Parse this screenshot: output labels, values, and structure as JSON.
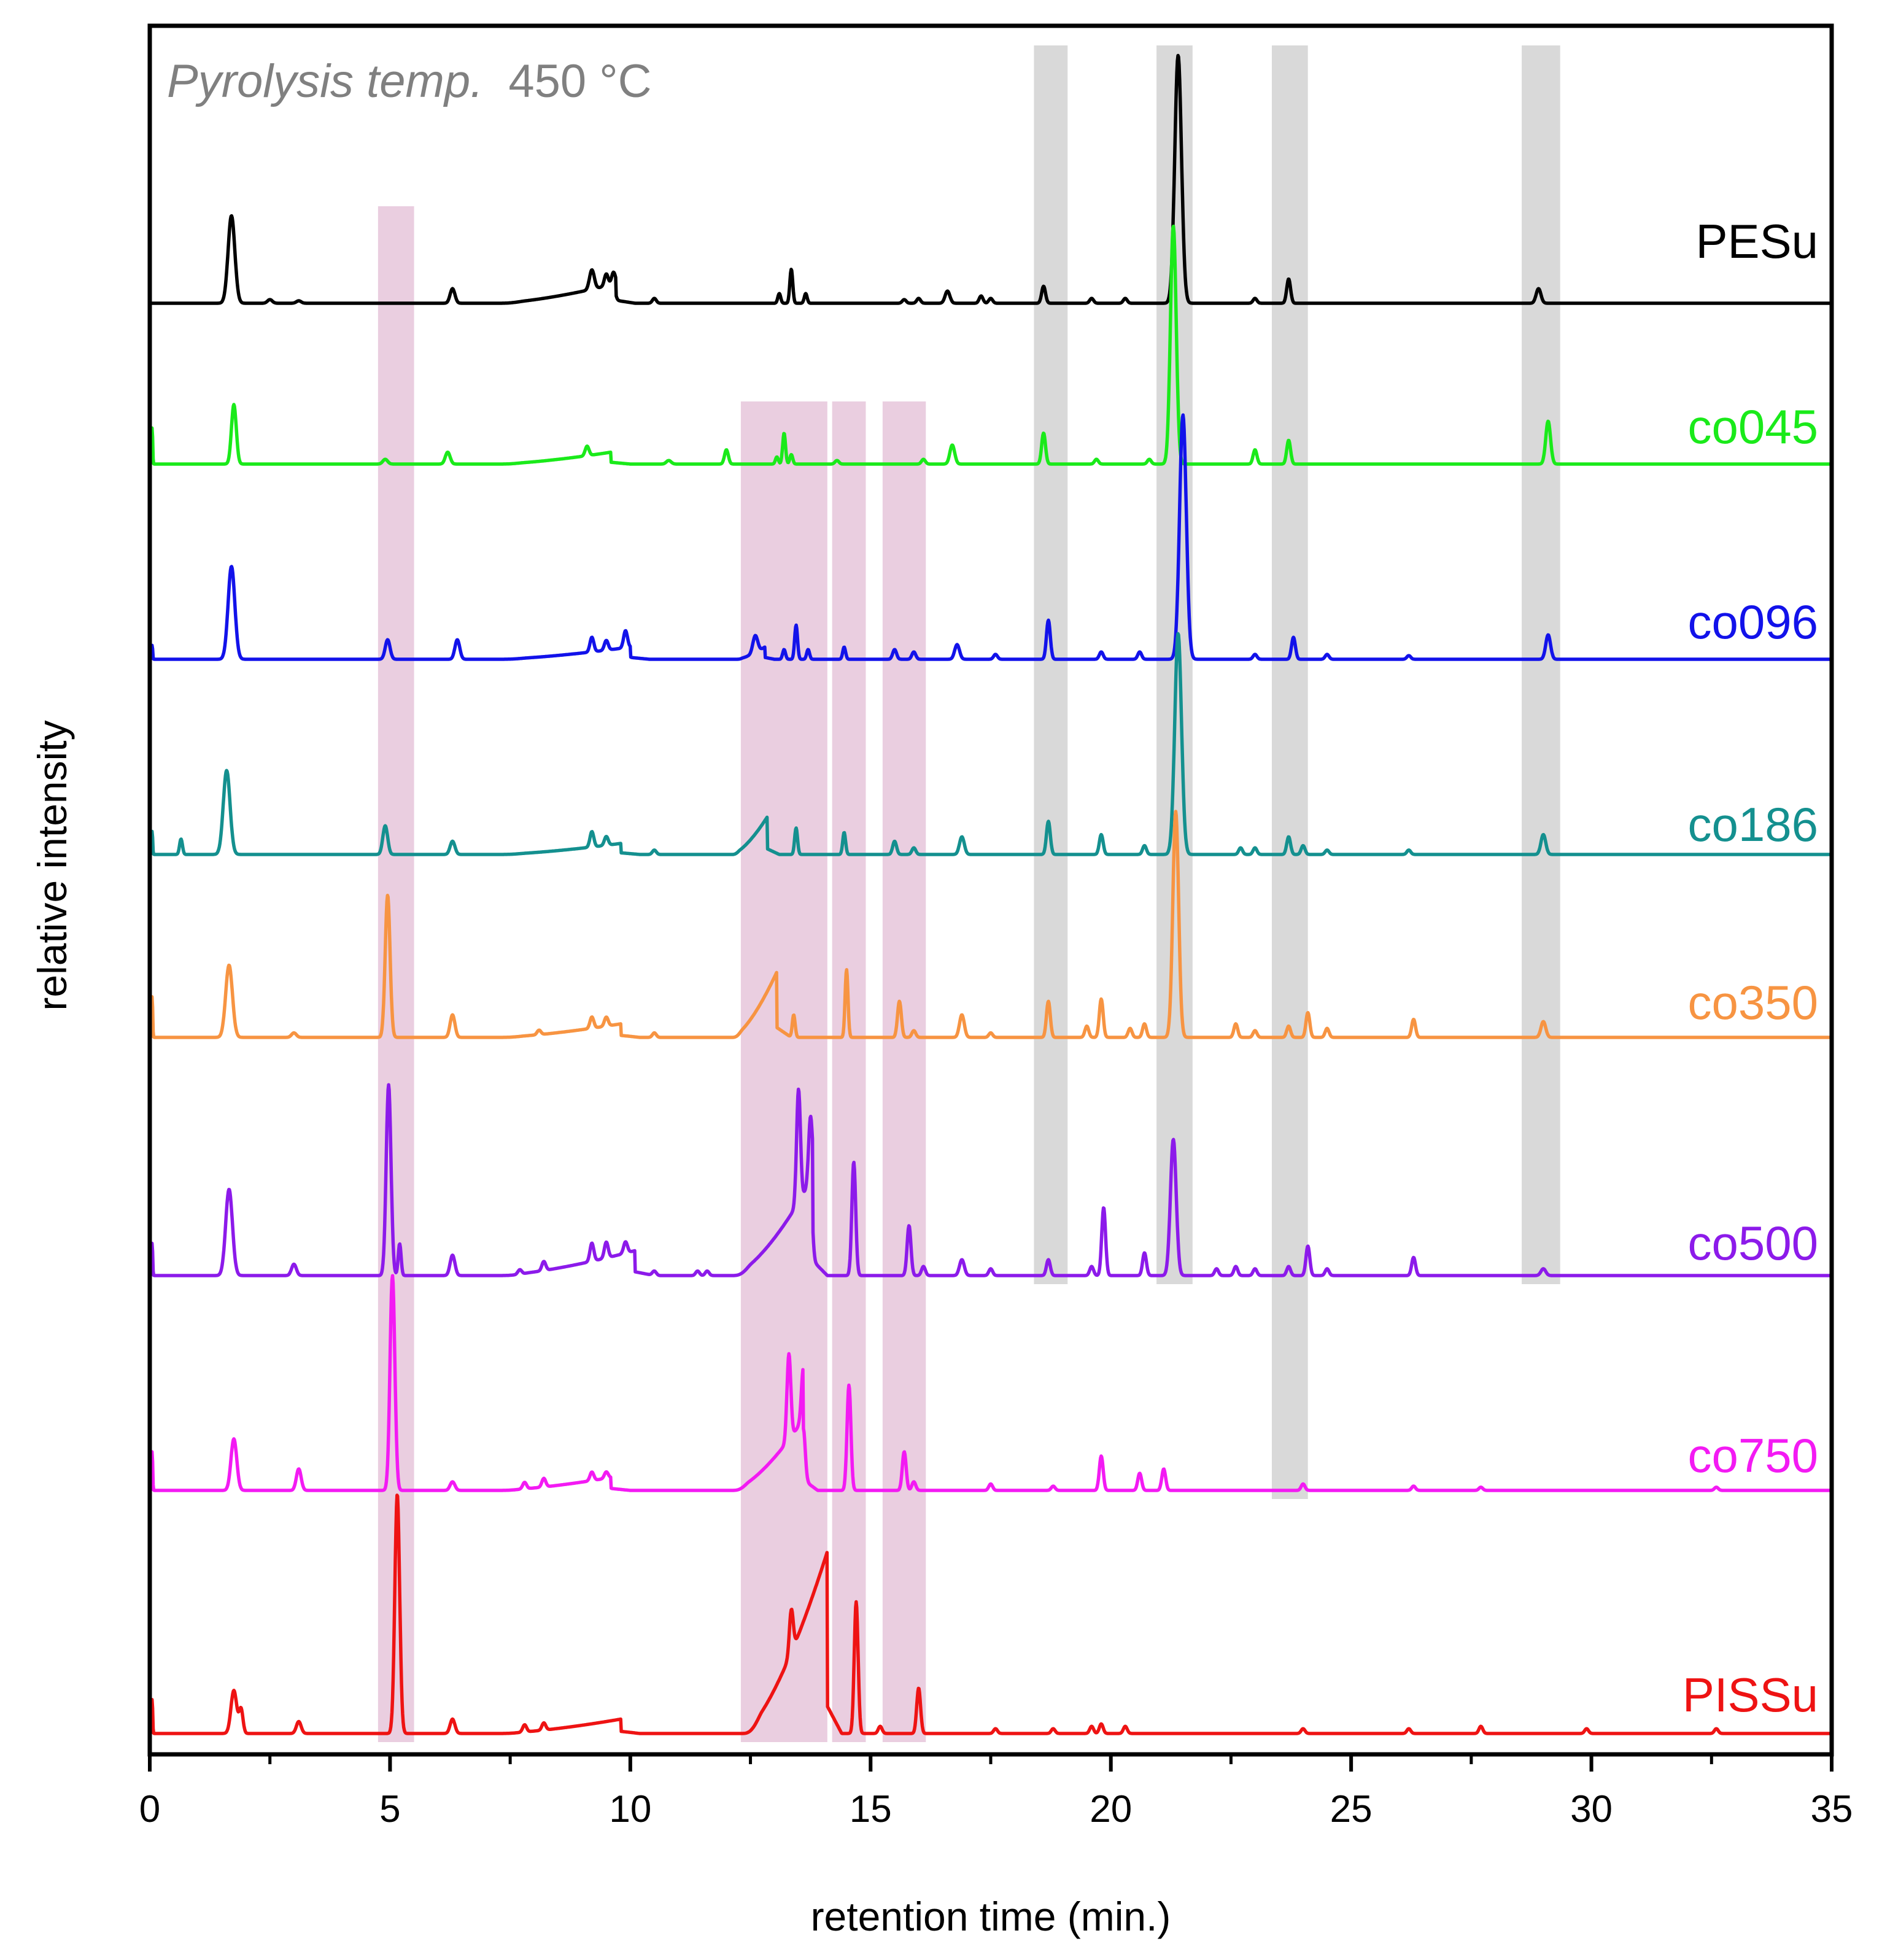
{
  "chart_data": {
    "type": "line",
    "annotation": {
      "italic": "Pyrolysis temp.",
      "plain": "450 °C",
      "color": "#808080"
    },
    "xlabel": "retention time (min.)",
    "ylabel": "relative intensity",
    "xlim": [
      0,
      35
    ],
    "x_ticks": [
      0,
      5,
      10,
      15,
      20,
      25,
      30,
      35
    ],
    "x_tick_labels": [
      "0",
      "5",
      "10",
      "15",
      "20",
      "25",
      "30",
      "35"
    ],
    "grid": false,
    "highlight_bands": [
      {
        "x_start": 4.75,
        "x_end": 5.5,
        "from_series": "co045",
        "to_series": "PISSu",
        "color": "#dcaecb"
      },
      {
        "x_start": 12.3,
        "x_end": 14.1,
        "from_series": "co096",
        "to_series": "PISSu",
        "color": "#dcaecb"
      },
      {
        "x_start": 14.2,
        "x_end": 14.9,
        "from_series": "co096",
        "to_series": "PISSu",
        "color": "#dcaecb"
      },
      {
        "x_start": 15.25,
        "x_end": 16.15,
        "from_series": "co096",
        "to_series": "PISSu",
        "color": "#dcaecb"
      },
      {
        "x_start": 18.4,
        "x_end": 19.1,
        "from_series": "PESu",
        "to_series": "co500",
        "color": "#c0c0c0"
      },
      {
        "x_start": 20.95,
        "x_end": 21.7,
        "from_series": "PESu",
        "to_series": "co500",
        "color": "#c0c0c0"
      },
      {
        "x_start": 23.35,
        "x_end": 24.1,
        "from_series": "PESu",
        "to_series": "co750",
        "color": "#c0c0c0"
      },
      {
        "x_start": 28.55,
        "x_end": 29.35,
        "from_series": "PESu",
        "to_series": "co500",
        "color": "#c0c0c0"
      }
    ],
    "series": [
      {
        "name": "PESu",
        "color": "#000000",
        "baseline": 100,
        "peaks": [
          [
            1.7,
            36,
            0.07
          ],
          [
            2.5,
            1.5,
            0.05
          ],
          [
            3.1,
            1,
            0.05
          ],
          [
            6.3,
            6,
            0.05
          ],
          [
            9.2,
            8,
            0.05
          ],
          [
            9.5,
            5,
            0.04
          ],
          [
            9.65,
            5,
            0.04
          ],
          [
            10.5,
            2,
            0.04
          ],
          [
            13.1,
            4,
            0.03
          ],
          [
            13.35,
            14,
            0.03
          ],
          [
            13.65,
            4,
            0.03
          ],
          [
            15.7,
            1.5,
            0.04
          ],
          [
            16.0,
            2,
            0.04
          ],
          [
            16.6,
            5,
            0.05
          ],
          [
            17.3,
            3,
            0.04
          ],
          [
            17.5,
            2,
            0.04
          ],
          [
            18.6,
            7,
            0.04
          ],
          [
            19.6,
            2,
            0.04
          ],
          [
            20.3,
            2,
            0.04
          ],
          [
            21.4,
            102,
            0.07
          ],
          [
            23.0,
            2,
            0.04
          ],
          [
            23.7,
            10,
            0.04
          ],
          [
            28.9,
            6,
            0.05
          ]
        ],
        "humps": [
          [
            7.2,
            9.7,
            0,
            8,
            0.4
          ]
        ]
      },
      {
        "name": "co045",
        "color": "#1aea1a",
        "baseline": 100,
        "peaks": [
          [
            0.05,
            16,
            0.01
          ],
          [
            1.75,
            25,
            0.05
          ],
          [
            4.9,
            2,
            0.05
          ],
          [
            6.2,
            5,
            0.05
          ],
          [
            9.1,
            4,
            0.04
          ],
          [
            10.8,
            1.5,
            0.05
          ],
          [
            12.0,
            6,
            0.04
          ],
          [
            13.05,
            3,
            0.03
          ],
          [
            13.2,
            13,
            0.03
          ],
          [
            13.35,
            4,
            0.03
          ],
          [
            14.3,
            1.5,
            0.04
          ],
          [
            16.1,
            2,
            0.04
          ],
          [
            16.7,
            8,
            0.05
          ],
          [
            18.6,
            13,
            0.04
          ],
          [
            19.7,
            2,
            0.04
          ],
          [
            20.8,
            2,
            0.04
          ],
          [
            21.3,
            100,
            0.06
          ],
          [
            23.0,
            6,
            0.04
          ],
          [
            23.7,
            10,
            0.04
          ],
          [
            29.1,
            18,
            0.05
          ]
        ],
        "humps": [
          [
            7.2,
            9.6,
            0,
            5,
            0.4
          ]
        ]
      },
      {
        "name": "co096",
        "color": "#1212ea",
        "baseline": 100,
        "peaks": [
          [
            0.05,
            6,
            0.01
          ],
          [
            1.7,
            38,
            0.07
          ],
          [
            4.95,
            8,
            0.05
          ],
          [
            6.4,
            8,
            0.05
          ],
          [
            9.2,
            6,
            0.04
          ],
          [
            9.5,
            4,
            0.04
          ],
          [
            9.9,
            7,
            0.04
          ],
          [
            12.6,
            7,
            0.05
          ],
          [
            13.2,
            4,
            0.03
          ],
          [
            13.45,
            14,
            0.03
          ],
          [
            13.7,
            4,
            0.03
          ],
          [
            14.45,
            5,
            0.03
          ],
          [
            15.5,
            4,
            0.04
          ],
          [
            15.9,
            3,
            0.04
          ],
          [
            16.8,
            6,
            0.05
          ],
          [
            17.6,
            2,
            0.04
          ],
          [
            18.7,
            16,
            0.04
          ],
          [
            19.8,
            3,
            0.04
          ],
          [
            20.6,
            3,
            0.04
          ],
          [
            21.5,
            100,
            0.07
          ],
          [
            23.0,
            2,
            0.04
          ],
          [
            23.8,
            9,
            0.04
          ],
          [
            24.5,
            2,
            0.04
          ],
          [
            26.2,
            1.5,
            0.04
          ],
          [
            29.1,
            10,
            0.05
          ]
        ],
        "humps": [
          [
            7.2,
            10.0,
            0,
            5,
            0.4
          ],
          [
            12.2,
            12.8,
            0,
            5,
            0.2
          ]
        ]
      },
      {
        "name": "co186",
        "color": "#14908f",
        "baseline": 100,
        "peaks": [
          [
            0.05,
            11,
            0.01
          ],
          [
            0.65,
            7,
            0.03
          ],
          [
            1.6,
            38,
            0.07
          ],
          [
            4.9,
            13,
            0.05
          ],
          [
            6.3,
            6,
            0.05
          ],
          [
            9.2,
            7,
            0.04
          ],
          [
            9.5,
            4,
            0.04
          ],
          [
            10.5,
            2,
            0.04
          ],
          [
            13.45,
            12,
            0.03
          ],
          [
            14.45,
            10,
            0.03
          ],
          [
            15.5,
            6,
            0.04
          ],
          [
            15.9,
            3,
            0.04
          ],
          [
            16.9,
            8,
            0.05
          ],
          [
            18.7,
            15,
            0.04
          ],
          [
            19.8,
            9,
            0.04
          ],
          [
            20.7,
            4,
            0.04
          ],
          [
            21.4,
            100,
            0.07
          ],
          [
            22.7,
            3,
            0.04
          ],
          [
            23.0,
            3,
            0.04
          ],
          [
            23.7,
            8,
            0.04
          ],
          [
            24.0,
            4,
            0.04
          ],
          [
            24.5,
            2,
            0.04
          ],
          [
            26.2,
            2,
            0.04
          ],
          [
            29.0,
            9,
            0.05
          ]
        ],
        "humps": [
          [
            7.2,
            9.8,
            0,
            5,
            0.4
          ],
          [
            12.1,
            12.85,
            0,
            17,
            0.25
          ]
        ]
      },
      {
        "name": "co350",
        "color": "#f79442",
        "baseline": 100,
        "peaks": [
          [
            0.05,
            19,
            0.01
          ],
          [
            1.65,
            32,
            0.07
          ],
          [
            3.0,
            2,
            0.05
          ],
          [
            4.95,
            63,
            0.05
          ],
          [
            6.3,
            10,
            0.05
          ],
          [
            8.1,
            2,
            0.04
          ],
          [
            9.2,
            5,
            0.04
          ],
          [
            9.5,
            4,
            0.04
          ],
          [
            10.5,
            2,
            0.04
          ],
          [
            13.4,
            10,
            0.03
          ],
          [
            14.5,
            30,
            0.03
          ],
          [
            15.6,
            16,
            0.04
          ],
          [
            15.9,
            3,
            0.04
          ],
          [
            16.9,
            10,
            0.05
          ],
          [
            17.5,
            2,
            0.04
          ],
          [
            18.7,
            16,
            0.04
          ],
          [
            19.5,
            5,
            0.04
          ],
          [
            19.8,
            17,
            0.04
          ],
          [
            20.4,
            4,
            0.04
          ],
          [
            20.7,
            6,
            0.04
          ],
          [
            21.35,
            100,
            0.06
          ],
          [
            22.6,
            6,
            0.04
          ],
          [
            23.0,
            3,
            0.04
          ],
          [
            23.7,
            5,
            0.04
          ],
          [
            24.1,
            11,
            0.04
          ],
          [
            24.5,
            4,
            0.04
          ],
          [
            26.3,
            8,
            0.04
          ],
          [
            29.0,
            7,
            0.05
          ]
        ],
        "humps": [
          [
            7.2,
            9.8,
            0,
            6,
            0.4
          ],
          [
            12.1,
            13.05,
            0,
            29,
            0.3
          ]
        ]
      },
      {
        "name": "co500",
        "color": "#8c1aea",
        "baseline": 100,
        "peaks": [
          [
            0.05,
            15,
            0.01
          ],
          [
            1.65,
            38,
            0.07
          ],
          [
            3.0,
            5,
            0.05
          ],
          [
            4.97,
            84,
            0.05
          ],
          [
            5.2,
            14,
            0.03
          ],
          [
            6.3,
            9,
            0.05
          ],
          [
            7.7,
            2,
            0.04
          ],
          [
            8.2,
            4,
            0.04
          ],
          [
            9.2,
            8,
            0.04
          ],
          [
            9.5,
            7,
            0.04
          ],
          [
            9.9,
            5,
            0.04
          ],
          [
            10.5,
            2,
            0.04
          ],
          [
            11.4,
            2,
            0.04
          ],
          [
            11.6,
            2,
            0.04
          ],
          [
            13.5,
            50,
            0.04
          ],
          [
            13.75,
            29,
            0.04
          ],
          [
            14.65,
            50,
            0.04
          ],
          [
            15.8,
            22,
            0.04
          ],
          [
            16.1,
            4,
            0.04
          ],
          [
            16.9,
            7,
            0.05
          ],
          [
            17.5,
            3,
            0.04
          ],
          [
            18.7,
            7,
            0.04
          ],
          [
            19.6,
            4,
            0.04
          ],
          [
            19.85,
            30,
            0.04
          ],
          [
            20.7,
            10,
            0.04
          ],
          [
            21.3,
            60,
            0.06
          ],
          [
            22.2,
            3,
            0.04
          ],
          [
            22.6,
            4,
            0.04
          ],
          [
            23.0,
            3,
            0.04
          ],
          [
            23.7,
            4,
            0.04
          ],
          [
            24.1,
            13,
            0.04
          ],
          [
            24.5,
            3,
            0.04
          ],
          [
            26.3,
            8,
            0.04
          ],
          [
            29.0,
            3,
            0.05
          ]
        ],
        "humps": [
          [
            7.2,
            10.1,
            0,
            11,
            0.4
          ],
          [
            12.1,
            13.8,
            0,
            43,
            0.3
          ]
        ]
      },
      {
        "name": "co750",
        "color": "#f31af3",
        "baseline": 100,
        "peaks": [
          [
            0.05,
            19,
            0.01
          ],
          [
            1.75,
            24,
            0.06
          ],
          [
            3.1,
            10,
            0.05
          ],
          [
            5.05,
            100,
            0.05
          ],
          [
            6.3,
            4,
            0.05
          ],
          [
            7.8,
            3,
            0.04
          ],
          [
            8.2,
            4,
            0.04
          ],
          [
            9.2,
            4,
            0.04
          ],
          [
            9.5,
            3,
            0.04
          ],
          [
            13.3,
            40,
            0.04
          ],
          [
            13.6,
            24,
            0.04
          ],
          [
            14.55,
            49,
            0.04
          ],
          [
            15.7,
            18,
            0.04
          ],
          [
            15.9,
            4,
            0.04
          ],
          [
            17.5,
            3,
            0.04
          ],
          [
            18.8,
            2,
            0.04
          ],
          [
            19.8,
            16,
            0.04
          ],
          [
            20.6,
            8,
            0.04
          ],
          [
            21.1,
            10,
            0.04
          ],
          [
            24.0,
            3,
            0.04
          ],
          [
            26.3,
            2,
            0.04
          ],
          [
            27.7,
            1.5,
            0.04
          ],
          [
            32.6,
            1.5,
            0.04
          ]
        ],
        "humps": [
          [
            7.2,
            9.6,
            0,
            6,
            0.4
          ],
          [
            12.1,
            13.6,
            0,
            33,
            0.3
          ]
        ]
      },
      {
        "name": "PISSu",
        "color": "#ee1313",
        "baseline": 100,
        "peaks": [
          [
            0.05,
            15,
            0.01
          ],
          [
            1.75,
            18,
            0.06
          ],
          [
            1.9,
            10,
            0.04
          ],
          [
            3.1,
            5,
            0.05
          ],
          [
            5.15,
            100,
            0.05
          ],
          [
            6.3,
            6,
            0.05
          ],
          [
            7.8,
            3,
            0.04
          ],
          [
            8.2,
            3,
            0.04
          ],
          [
            13.35,
            18,
            0.04
          ],
          [
            14.7,
            55,
            0.04
          ],
          [
            15.2,
            3,
            0.04
          ],
          [
            16.0,
            19,
            0.04
          ],
          [
            17.6,
            2,
            0.04
          ],
          [
            18.8,
            2,
            0.04
          ],
          [
            19.6,
            3,
            0.04
          ],
          [
            19.8,
            4,
            0.04
          ],
          [
            20.3,
            3,
            0.04
          ],
          [
            24.0,
            2,
            0.04
          ],
          [
            26.2,
            2,
            0.04
          ],
          [
            27.7,
            3,
            0.04
          ],
          [
            29.9,
            2,
            0.04
          ],
          [
            32.6,
            2,
            0.04
          ]
        ],
        "humps": [
          [
            7.2,
            9.8,
            0,
            6,
            0.4
          ],
          [
            12.3,
            14.1,
            0,
            76,
            0.3
          ]
        ]
      }
    ]
  }
}
